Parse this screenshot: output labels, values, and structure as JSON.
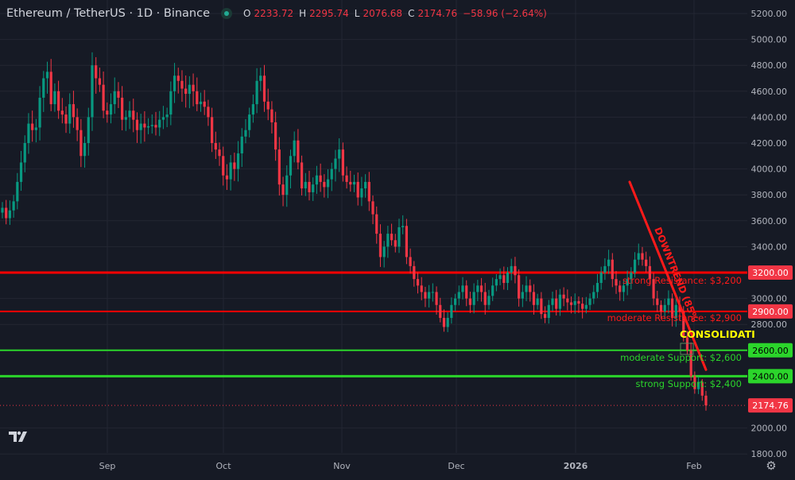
{
  "header": {
    "title": "Ethereum / TetherUS · 1D · Binance",
    "open_label": "O",
    "open": "2233.72",
    "high_label": "H",
    "high": "2295.74",
    "low_label": "L",
    "low": "2076.68",
    "close_label": "C",
    "close": "2174.76",
    "change": "−58.96 (−2.64%)"
  },
  "price_axis": {
    "ticks": [
      "5200.00",
      "5000.00",
      "4800.00",
      "4600.00",
      "4400.00",
      "4200.00",
      "4000.00",
      "3800.00",
      "3600.00",
      "3400.00",
      "3000.00",
      "2800.00",
      "2000.00",
      "1800.00"
    ],
    "badges": [
      {
        "label": "3200.00",
        "color": "#f23645"
      },
      {
        "label": "2900.00",
        "color": "#f23645"
      },
      {
        "label": "2600.00",
        "color": "#2bd52b"
      },
      {
        "label": "2400.00",
        "color": "#2bd52b"
      },
      {
        "label": "2174.76",
        "color": "#f23645"
      }
    ]
  },
  "time_axis": [
    "Sep",
    "Oct",
    "Nov",
    "Dec",
    "2026",
    "Feb"
  ],
  "annotations": {
    "r1": "strong Resistance: $3,200",
    "r2": "moderate Resistance: $2,900",
    "s1": "moderate Support: $2,600",
    "s2": "strong Support: $2,400",
    "consolidation": "CONSOLIDATI",
    "downtrend": "DOWNTREND (85%"
  },
  "colors": {
    "up": "#089981",
    "down": "#f23645",
    "bg": "#161a25",
    "grid": "#232632",
    "support": "#2bd52b",
    "resistance": "#ff0000",
    "consolidation": "#ffff00"
  },
  "chart_data": {
    "type": "candlestick",
    "title": "Ethereum / TetherUS · 1D · Binance",
    "ylim": [
      1800,
      5200
    ],
    "x_ticks": [
      "Sep",
      "Oct",
      "Nov",
      "Dec",
      "2026",
      "Feb"
    ],
    "horizontal_levels": [
      {
        "label": "strong Resistance: $3,200",
        "value": 3200
      },
      {
        "label": "moderate Resistance: $2,900",
        "value": 2900
      },
      {
        "label": "moderate Support: $2,600",
        "value": 2600
      },
      {
        "label": "strong Support: $2,400",
        "value": 2400
      }
    ],
    "trendline": {
      "label": "DOWNTREND (85%",
      "from": 3900,
      "to": 2450
    },
    "last_price": 2174.76,
    "closes": [
      3700,
      3620,
      3680,
      3750,
      3900,
      4050,
      4200,
      4350,
      4300,
      4320,
      4550,
      4700,
      4750,
      4500,
      4600,
      4450,
      4420,
      4350,
      4500,
      4400,
      4300,
      4100,
      4200,
      4400,
      4800,
      4700,
      4650,
      4450,
      4420,
      4500,
      4600,
      4550,
      4380,
      4400,
      4450,
      4380,
      4300,
      4350,
      4320,
      4330,
      4340,
      4320,
      4380,
      4400,
      4420,
      4600,
      4720,
      4680,
      4620,
      4580,
      4650,
      4600,
      4500,
      4520,
      4480,
      4400,
      4200,
      4150,
      4100,
      3950,
      3920,
      4050,
      4000,
      4120,
      4250,
      4300,
      4420,
      4500,
      4680,
      4720,
      4520,
      4460,
      4360,
      4150,
      3880,
      3800,
      3950,
      4100,
      4220,
      4050,
      3850,
      3900,
      3820,
      3880,
      3950,
      3900,
      3860,
      3920,
      4000,
      4080,
      4150,
      3950,
      3900,
      3880,
      3900,
      3780,
      3850,
      3900,
      3750,
      3650,
      3500,
      3320,
      3400,
      3500,
      3450,
      3400,
      3550,
      3560,
      3320,
      3250,
      3150,
      3100,
      3050,
      3000,
      3050,
      3050,
      2950,
      2850,
      2780,
      2850,
      2950,
      3000,
      3050,
      3100,
      3000,
      2950,
      3050,
      3100,
      3050,
      2950,
      3020,
      3100,
      3150,
      3180,
      3120,
      3200,
      3250,
      3180,
      3000,
      3050,
      3100,
      3050,
      2950,
      3000,
      2880,
      2850,
      2950,
      3000,
      2920,
      3030,
      3000,
      2970,
      2950,
      2980,
      2960,
      2920,
      2950,
      3000,
      3050,
      3120,
      3200,
      3250,
      3300,
      3150,
      3100,
      3050,
      3100,
      3150,
      3200,
      3300,
      3350,
      3300,
      3250,
      3150,
      3000,
      2950,
      2900,
      2950,
      3000,
      2850,
      2950,
      2900,
      2700,
      2600,
      2400,
      2300,
      2350,
      2250,
      2174.76
    ]
  }
}
